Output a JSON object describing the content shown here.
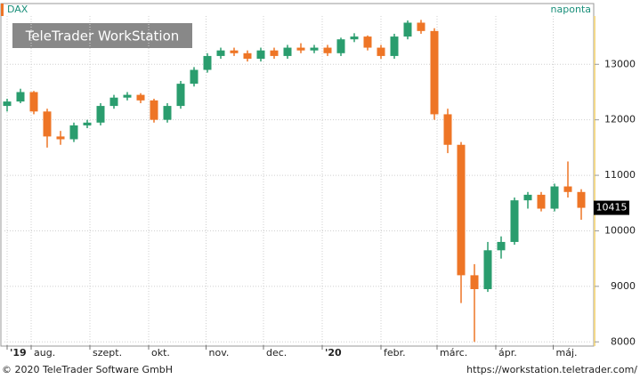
{
  "chart_data": {
    "type": "candlestick",
    "title": "DAX",
    "subtitle": "naponta",
    "watermark": "TeleTrader WorkStation",
    "footer_left": "© 2020 TeleTrader Software GmbH",
    "footer_right": "https://workstation.teletrader.com/",
    "x": [
      0,
      1,
      2,
      3,
      4,
      5,
      6,
      7,
      8,
      9,
      10,
      11,
      12,
      13,
      14,
      15,
      16,
      17,
      18,
      19,
      20,
      21,
      22,
      23,
      24,
      25,
      26,
      27,
      28,
      29,
      30,
      31,
      32,
      33,
      34,
      35,
      36,
      37,
      38,
      39,
      40,
      41,
      42,
      43
    ],
    "open": [
      12250,
      12330,
      12500,
      12150,
      11700,
      11650,
      11900,
      11950,
      12250,
      12400,
      12450,
      12350,
      12000,
      12250,
      12650,
      12900,
      13150,
      13250,
      13200,
      13100,
      13250,
      13150,
      13300,
      13250,
      13300,
      13200,
      13450,
      13500,
      13300,
      13150,
      13500,
      13750,
      13600,
      12100,
      11550,
      9200,
      8950,
      9650,
      9800,
      10550,
      10650,
      10400,
      10800,
      10700
    ],
    "high": [
      12380,
      12560,
      12520,
      12200,
      11800,
      11950,
      12000,
      12300,
      12450,
      12500,
      12480,
      12380,
      12300,
      12700,
      12950,
      13200,
      13300,
      13300,
      13250,
      13300,
      13300,
      13350,
      13380,
      13350,
      13350,
      13480,
      13560,
      13520,
      13350,
      13550,
      13790,
      13800,
      13650,
      12200,
      11600,
      9400,
      9800,
      9900,
      10600,
      10700,
      10700,
      10850,
      11250,
      10750
    ],
    "low": [
      12150,
      12300,
      12100,
      11500,
      11550,
      11600,
      11850,
      11900,
      12200,
      12350,
      12300,
      11950,
      11950,
      12200,
      12600,
      12850,
      13100,
      13150,
      13050,
      13050,
      13100,
      13100,
      13200,
      13200,
      13150,
      13150,
      13400,
      13250,
      13100,
      13100,
      13450,
      13550,
      12000,
      11400,
      8700,
      8000,
      8900,
      9500,
      9750,
      10400,
      10350,
      10350,
      10600,
      10200
    ],
    "close": [
      12330,
      12500,
      12150,
      11700,
      11650,
      11900,
      11950,
      12250,
      12400,
      12450,
      12350,
      12000,
      12250,
      12650,
      12900,
      13150,
      13250,
      13200,
      13100,
      13250,
      13150,
      13300,
      13250,
      13300,
      13200,
      13450,
      13500,
      13300,
      13150,
      13500,
      13750,
      13600,
      12100,
      11550,
      9200,
      8950,
      9650,
      9800,
      10550,
      10650,
      10400,
      10800,
      10700,
      10415
    ],
    "up_color": "#2a9d6e",
    "down_color": "#ee7526",
    "last_value": 10415,
    "xlim": [
      -0.2,
      43.8
    ],
    "xticks": [
      {
        "value": 0,
        "label": "'19"
      },
      {
        "value": 1.8,
        "label": "aug."
      },
      {
        "value": 6.2,
        "label": "szept."
      },
      {
        "value": 10.6,
        "label": "okt."
      },
      {
        "value": 14.9,
        "label": "nov."
      },
      {
        "value": 19.2,
        "label": "dec."
      },
      {
        "value": 23.6,
        "label": "'20"
      },
      {
        "value": 28.0,
        "label": "febr."
      },
      {
        "value": 32.2,
        "label": "márc."
      },
      {
        "value": 36.6,
        "label": "ápr."
      },
      {
        "value": 40.9,
        "label": "máj."
      }
    ],
    "ylim": [
      7940,
      13870
    ],
    "yticks": [
      8000,
      9000,
      10000,
      11000,
      12000,
      13000
    ],
    "grid": true
  }
}
